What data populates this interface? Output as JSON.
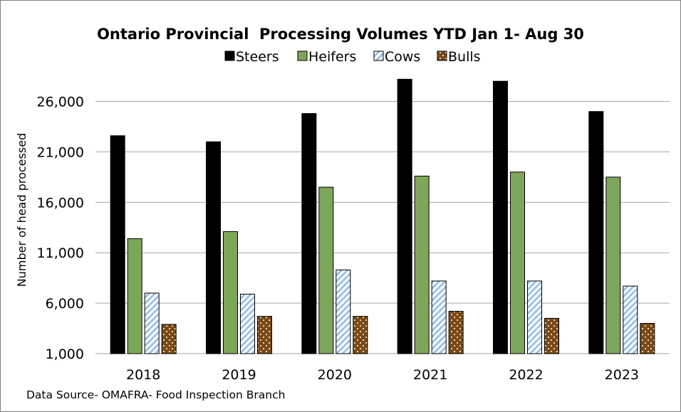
{
  "chart_data": {
    "type": "bar",
    "title": "Ontario Provincial  Processing Volumes YTD Jan 1- Aug 30",
    "xlabel": "",
    "ylabel": "Number of head processed",
    "source_note": "Data Source- OMAFRA- Food Inspection Branch",
    "categories": [
      "2018",
      "2019",
      "2020",
      "2021",
      "2022",
      "2023"
    ],
    "ylim": [
      1000,
      29000
    ],
    "yticks": [
      1000,
      6000,
      11000,
      16000,
      21000,
      26000
    ],
    "ytick_labels": [
      "1,000",
      "6,000",
      "11,000",
      "16,000",
      "21,000",
      "26,000"
    ],
    "grid": true,
    "legend_position": "top",
    "series": [
      {
        "name": "Steers",
        "color": "#000000",
        "pattern": "solid",
        "values": [
          22600,
          22000,
          24800,
          28200,
          28000,
          25000
        ]
      },
      {
        "name": "Heifers",
        "color": "#7ea65a",
        "pattern": "solid",
        "values": [
          12400,
          13100,
          17500,
          18600,
          19000,
          18500
        ]
      },
      {
        "name": "Cows",
        "color": "#9dc3e6",
        "pattern": "diagonal-stripes",
        "values": [
          7000,
          6900,
          9300,
          8200,
          8200,
          7700
        ]
      },
      {
        "name": "Bulls",
        "color": "#7a4a14",
        "pattern": "dots",
        "values": [
          3900,
          4700,
          4700,
          5200,
          4500,
          4000
        ]
      }
    ]
  }
}
